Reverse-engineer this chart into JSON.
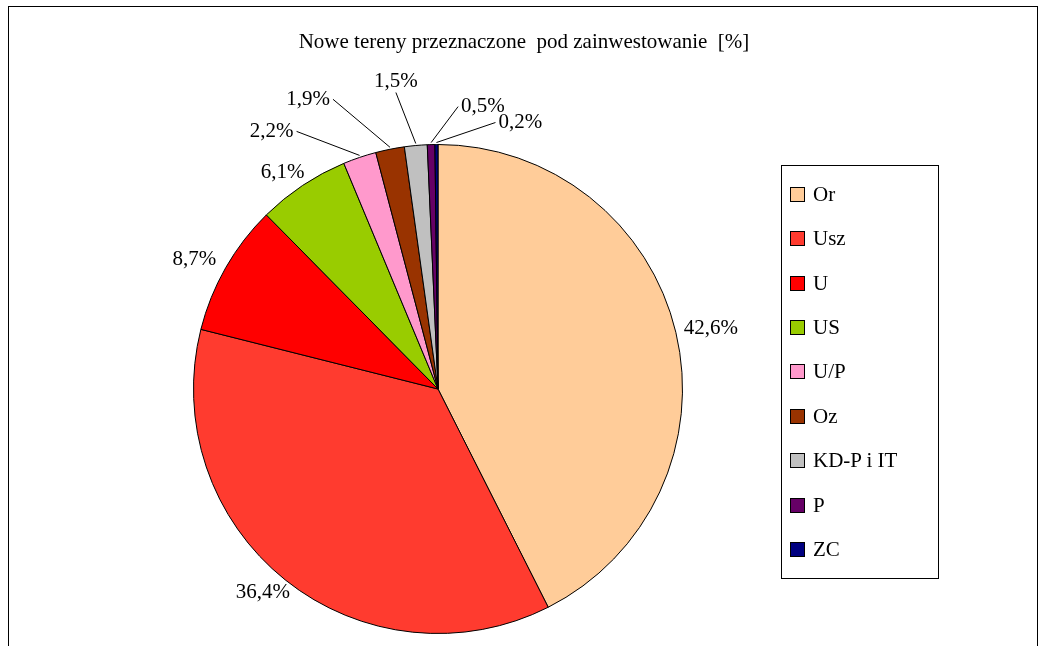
{
  "chart_data": {
    "type": "pie",
    "title": "Nowe tereny przeznaczone  pod zainwestowanie  [%]",
    "categories": [
      "Or",
      "Usz",
      "U",
      "US",
      "U/P",
      "Oz",
      "KD-P i IT",
      "P",
      "ZC"
    ],
    "values": [
      42.6,
      36.4,
      8.7,
      6.1,
      2.2,
      1.9,
      1.5,
      0.5,
      0.2
    ],
    "colors": [
      "#ffcc99",
      "#ff3b2f",
      "#ff0000",
      "#99cc00",
      "#ff99cc",
      "#993300",
      "#c0c0c0",
      "#660066",
      "#000080"
    ],
    "value_labels": [
      "42,6%",
      "36,4%",
      "8,7%",
      "6,1%",
      "2,2%",
      "1,9%",
      "1,5%",
      "0,5%",
      "0,2%"
    ],
    "legend": "right"
  }
}
